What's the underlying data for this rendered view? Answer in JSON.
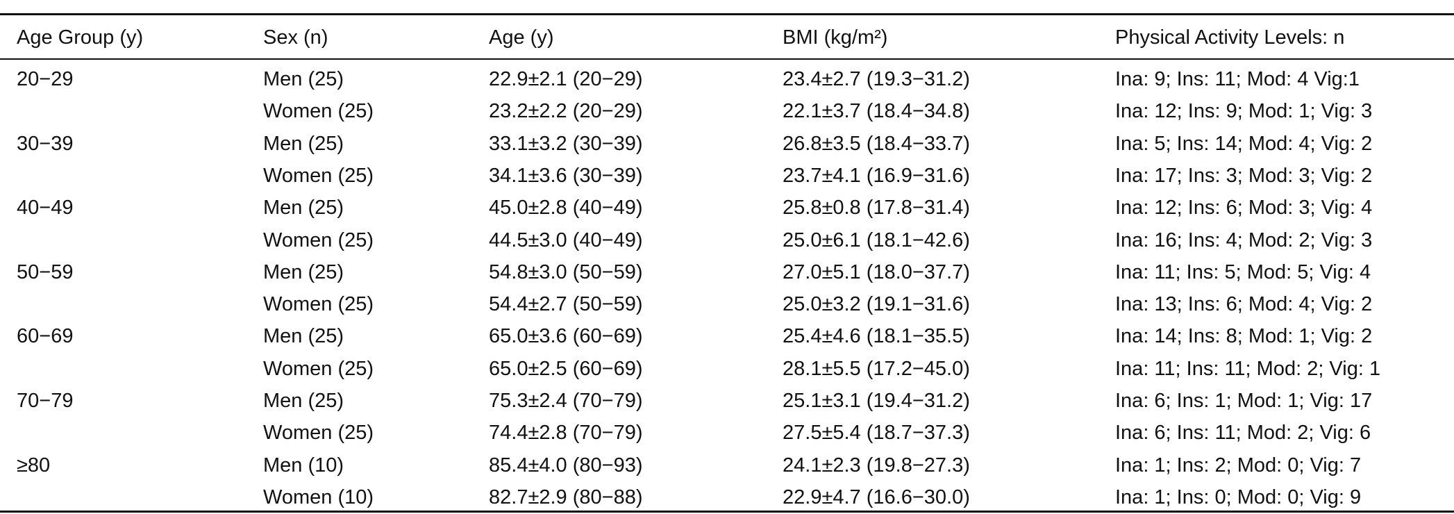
{
  "table": {
    "header": [
      "Age Group (y)",
      "Sex (n)",
      "Age (y)",
      "BMI (kg/m²)",
      "Physical Activity Levels: n"
    ],
    "rows": [
      [
        "20−29",
        "Men (25)",
        "22.9±2.1 (20−29)",
        "23.4±2.7 (19.3−31.2)",
        "Ina: 9; Ins: 11; Mod: 4 Vig:1"
      ],
      [
        null,
        "Women (25)",
        "23.2±2.2 (20−29)",
        "22.1±3.7 (18.4−34.8)",
        "Ina: 12; Ins: 9; Mod: 1; Vig: 3"
      ],
      [
        "30−39",
        "Men (25)",
        "33.1±3.2 (30−39)",
        "26.8±3.5 (18.4−33.7)",
        "Ina: 5; Ins: 14; Mod: 4; Vig: 2"
      ],
      [
        null,
        "Women (25)",
        "34.1±3.6 (30−39)",
        "23.7±4.1 (16.9−31.6)",
        "Ina: 17; Ins: 3; Mod: 3; Vig: 2"
      ],
      [
        "40−49",
        "Men (25)",
        "45.0±2.8 (40−49)",
        "25.8±0.8 (17.8−31.4)",
        "Ina: 12; Ins: 6; Mod: 3; Vig: 4"
      ],
      [
        null,
        "Women (25)",
        "44.5±3.0 (40−49)",
        "25.0±6.1 (18.1−42.6)",
        "Ina: 16; Ins: 4; Mod: 2; Vig: 3"
      ],
      [
        "50−59",
        "Men (25)",
        "54.8±3.0 (50−59)",
        "27.0±5.1 (18.0−37.7)",
        "Ina: 11; Ins: 5; Mod: 5; Vig: 4"
      ],
      [
        null,
        "Women (25)",
        "54.4±2.7 (50−59)",
        "25.0±3.2 (19.1−31.6)",
        "Ina: 13; Ins: 6; Mod: 4; Vig: 2"
      ],
      [
        "60−69",
        "Men (25)",
        "65.0±3.6 (60−69)",
        "25.4±4.6 (18.1−35.5)",
        "Ina: 14; Ins: 8; Mod: 1; Vig: 2"
      ],
      [
        null,
        "Women (25)",
        "65.0±2.5 (60−69)",
        "28.1±5.5 (17.2−45.0)",
        "Ina: 11; Ins: 11; Mod: 2; Vig: 1"
      ],
      [
        "70−79",
        "Men (25)",
        "75.3±2.4 (70−79)",
        "25.1±3.1 (19.4−31.2)",
        "Ina: 6; Ins: 1; Mod: 1; Vig: 17"
      ],
      [
        null,
        "Women (25)",
        "74.4±2.8 (70−79)",
        "27.5±5.4 (18.7−37.3)",
        "Ina: 6; Ins: 11; Mod: 2; Vig: 6"
      ],
      [
        "≥80",
        "Men (10)",
        "85.4±4.0 (80−93)",
        "24.1±2.3 (19.8−27.3)",
        "Ina: 1; Ins: 2; Mod: 0; Vig: 7"
      ],
      [
        null,
        "Women (10)",
        "82.7±2.9 (80−88)",
        "22.9±4.7 (16.6−30.0)",
        "Ina: 1; Ins: 0; Mod: 0; Vig: 9"
      ]
    ]
  }
}
